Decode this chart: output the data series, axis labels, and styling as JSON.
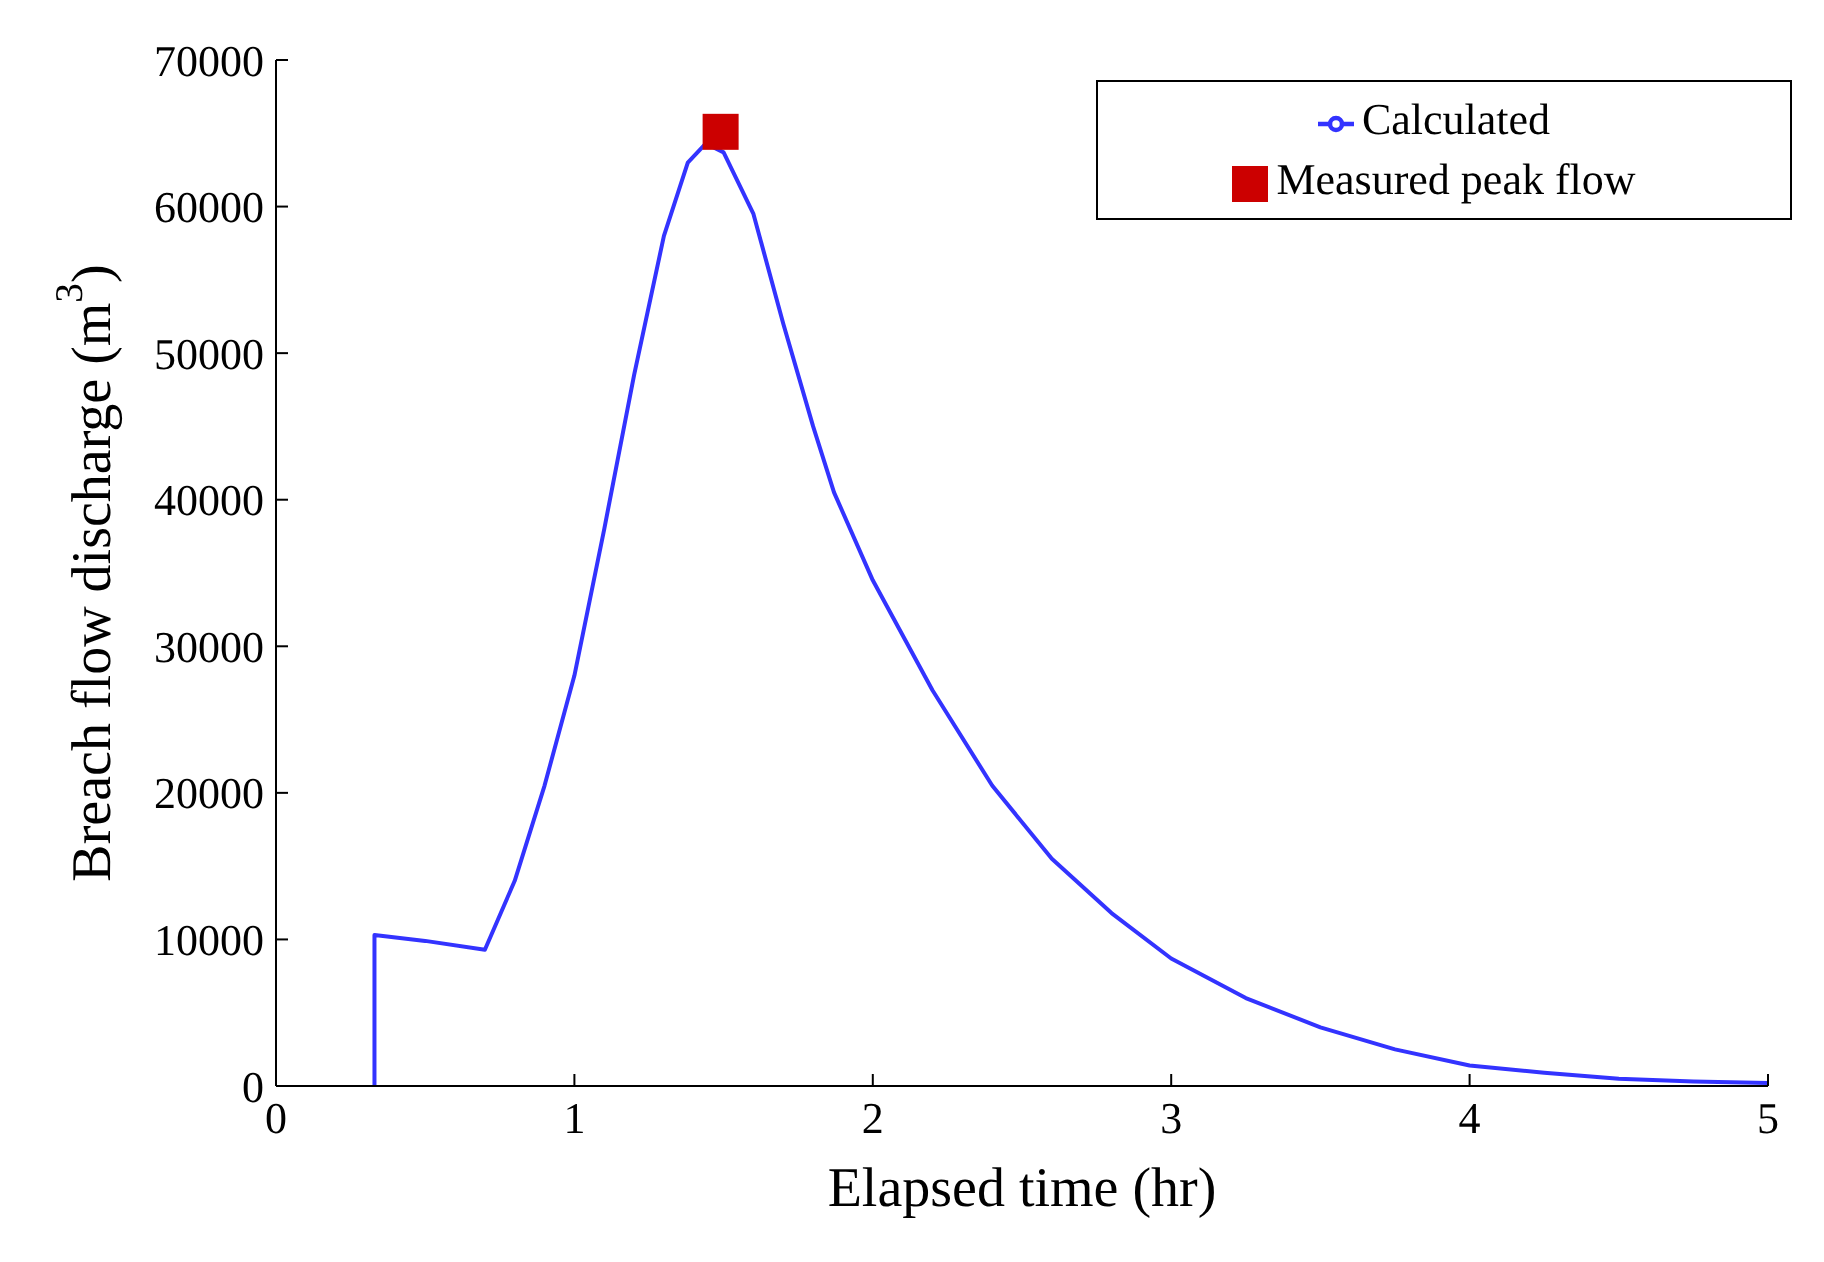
{
  "chart_data": {
    "type": "line",
    "xlabel": "Elapsed time (hr)",
    "ylabel": "Breach flow discharge (m$^{3}$)",
    "xlim": [
      0,
      5
    ],
    "xticks": [
      0,
      1,
      2,
      3,
      4,
      5
    ],
    "ylim": [
      0,
      70000
    ],
    "yticks": [
      0,
      10000,
      20000,
      30000,
      40000,
      50000,
      60000,
      70000
    ],
    "grid": false,
    "legend": "top right",
    "line_style": "solid",
    "series": [
      {
        "name": "Measured peak flow",
        "type": "scatter",
        "marker": "square",
        "color": "#cc0000",
        "x": [
          1.49
        ],
        "values": [
          65100
        ]
      },
      {
        "name": "Calculated",
        "marker": "none",
        "color": "#3333ff",
        "x": [
          0.33,
          0.33,
          0.5,
          0.7,
          0.8,
          0.9,
          1.0,
          1.1,
          1.2,
          1.3,
          1.38,
          1.44,
          1.5,
          1.6,
          1.7,
          1.8,
          1.87,
          2.0,
          2.2,
          2.4,
          2.6,
          2.8,
          3.0,
          3.25,
          3.5,
          3.75,
          4.0,
          4.25,
          4.5,
          4.75,
          5.0
        ],
        "values": [
          0,
          10300,
          9900,
          9300,
          14000,
          20500,
          28000,
          38000,
          48500,
          58000,
          63000,
          64300,
          63700,
          59500,
          52000,
          45000,
          40500,
          34500,
          27000,
          20500,
          15500,
          11800,
          8700,
          6000,
          4000,
          2500,
          1400,
          900,
          500,
          300,
          200
        ]
      }
    ]
  }
}
